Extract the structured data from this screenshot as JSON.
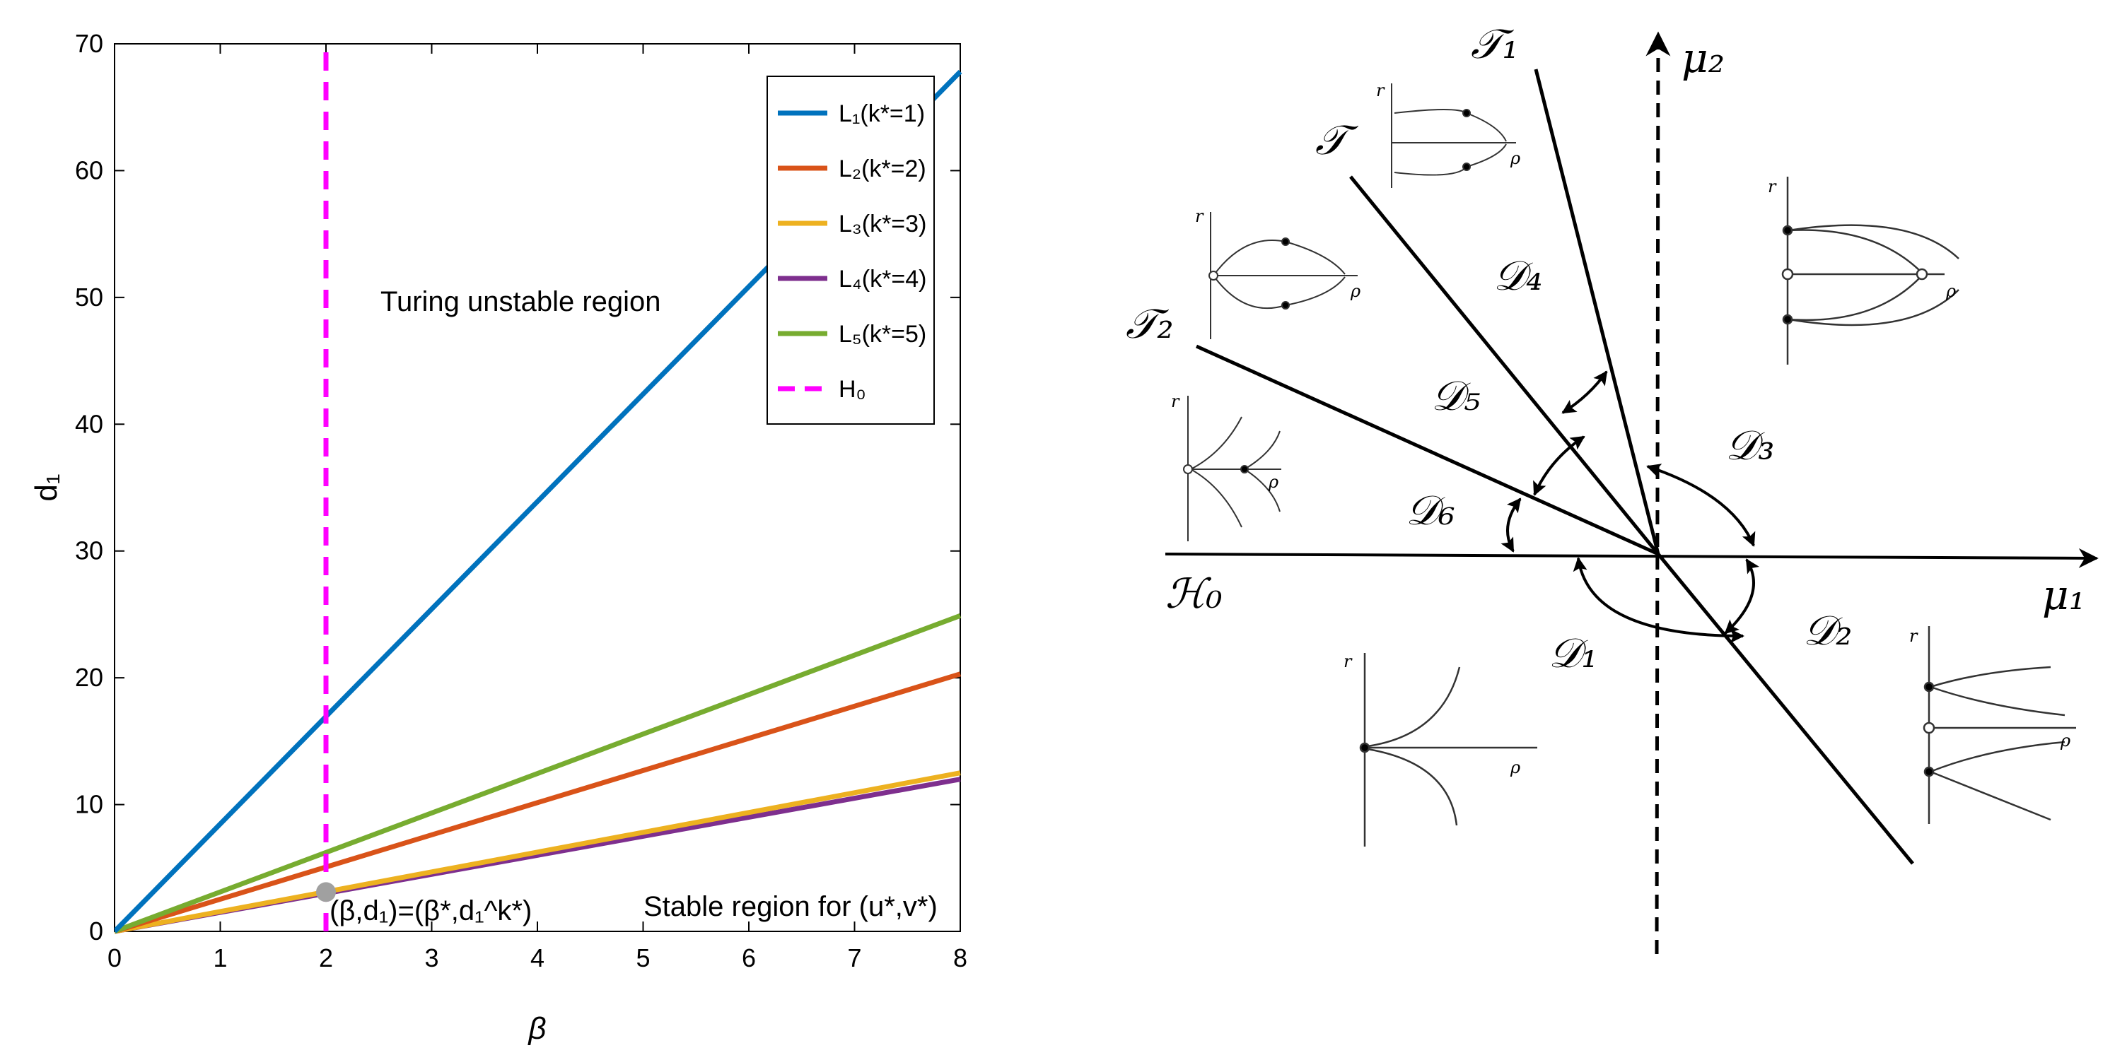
{
  "chart_data": [
    {
      "type": "line",
      "xlabel": "β",
      "ylabel": "d₁",
      "xlim": [
        0,
        8
      ],
      "ylim": [
        0,
        70
      ],
      "x_ticks": [
        "0",
        "1",
        "2",
        "3",
        "4",
        "5",
        "6",
        "7",
        "8"
      ],
      "y_ticks": [
        "0",
        "10",
        "20",
        "30",
        "40",
        "50",
        "60",
        "70"
      ],
      "grid": false,
      "legend_position": "top-right",
      "series": [
        {
          "name": "L₁(k*=1)",
          "color": "#0072BD",
          "x": [
            0,
            8
          ],
          "y": [
            0,
            67.8
          ]
        },
        {
          "name": "L₂(k*=2)",
          "color": "#D95319",
          "x": [
            0,
            8
          ],
          "y": [
            0,
            20.3
          ]
        },
        {
          "name": "L₃(k*=3)",
          "color": "#EDB120",
          "x": [
            0,
            8
          ],
          "y": [
            0,
            12.5
          ]
        },
        {
          "name": "L₄(k*=4)",
          "color": "#7E2F8E",
          "x": [
            0,
            8
          ],
          "y": [
            0,
            12.0
          ]
        },
        {
          "name": "L₅(k*=5)",
          "color": "#77AC30",
          "x": [
            0,
            8
          ],
          "y": [
            0,
            24.9
          ]
        },
        {
          "name": "H₀",
          "color": "#FF00FF",
          "dashed": true,
          "x": [
            2,
            2
          ],
          "y": [
            0,
            70
          ]
        }
      ],
      "annotations": [
        {
          "text": "Turing unstable region",
          "x": 2.5,
          "y": 49.3
        },
        {
          "text": "Stable region for (u*,v*)",
          "x": 5.1,
          "y": 1.7
        },
        {
          "text": "(β,d₁)=(β*,d₁^k*)",
          "x": 2.05,
          "y": 1.7
        }
      ],
      "points": [
        {
          "x": 2,
          "y": 3.1,
          "color": "#a0a0a0"
        }
      ]
    },
    {
      "type": "diagram",
      "axis_labels": {
        "horizontal": "μ₁",
        "vertical": "μ₂"
      },
      "line_labels": [
        "𝒯₁",
        "𝒯",
        "𝒯₂",
        "ℋ₀"
      ],
      "region_labels": [
        "𝒟₁",
        "𝒟₂",
        "𝒟₃",
        "𝒟₄",
        "𝒟₅",
        "𝒟₆"
      ],
      "phase_axis_labels": {
        "radial": "r",
        "angular": "ρ"
      }
    }
  ]
}
